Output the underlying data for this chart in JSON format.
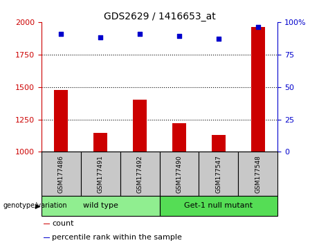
{
  "title": "GDS2629 / 1416653_at",
  "samples": [
    "GSM177486",
    "GSM177491",
    "GSM177492",
    "GSM177490",
    "GSM177547",
    "GSM177548"
  ],
  "bar_values": [
    1475,
    1145,
    1400,
    1220,
    1130,
    1960
  ],
  "percentile_values": [
    91,
    88,
    91,
    89,
    87,
    96
  ],
  "ylim_left": [
    1000,
    2000
  ],
  "ylim_right": [
    0,
    100
  ],
  "yticks_left": [
    1000,
    1250,
    1500,
    1750,
    2000
  ],
  "yticks_right": [
    0,
    25,
    50,
    75,
    100
  ],
  "bar_color": "#cc0000",
  "dot_color": "#0000cc",
  "wild_type_color": "#90ee90",
  "mutant_color": "#55dd55",
  "group_label_prefix": "genotype/variation",
  "legend_count_label": "count",
  "legend_percentile_label": "percentile rank within the sample",
  "label_area_color": "#c8c8c8",
  "n_wild": 3,
  "n_mutant": 3
}
